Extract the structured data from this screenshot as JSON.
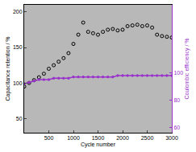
{
  "chart_data": {
    "type": "scatter",
    "x_label": "Cycle number",
    "y_label": "Capacitance retention / %",
    "y2_label": "Coulombic efficiency / %",
    "x": [
      0,
      100,
      200,
      300,
      400,
      500,
      600,
      700,
      800,
      900,
      1000,
      1100,
      1200,
      1300,
      1400,
      1500,
      1600,
      1700,
      1800,
      1900,
      2000,
      2100,
      2200,
      2300,
      2400,
      2500,
      2600,
      2700,
      2800,
      2900,
      3000
    ],
    "series": [
      {
        "name": "Capacitance retention",
        "color": "#000000",
        "marker": "open-circle",
        "type": "scatter",
        "values": [
          95,
          100,
          104,
          108,
          113,
          120,
          125,
          130,
          135,
          142,
          155,
          168,
          185,
          172,
          170,
          168,
          172,
          175,
          176,
          174,
          175,
          180,
          181,
          182,
          180,
          181,
          178,
          168,
          166,
          165,
          164
        ]
      },
      {
        "name": "Coulombic efficiency",
        "color": "#9933cc",
        "marker": "circle",
        "type": "line",
        "axis": "y2",
        "values": [
          92,
          93,
          94,
          95,
          95,
          95,
          96,
          96,
          96,
          96,
          97,
          97,
          97,
          97,
          97,
          97,
          97,
          97,
          97,
          98,
          98,
          98,
          98,
          98,
          98,
          98,
          98,
          98,
          98,
          98,
          98
        ]
      }
    ],
    "xlim": [
      0,
      3000
    ],
    "xticks": [
      500,
      1000,
      1500,
      2000,
      2500,
      3000
    ],
    "ylim": [
      30,
      210
    ],
    "yticks": [
      50,
      100,
      150,
      200
    ],
    "y2lim": [
      56,
      150
    ],
    "y2ticks": [
      60,
      80,
      100
    ],
    "grid": false
  }
}
